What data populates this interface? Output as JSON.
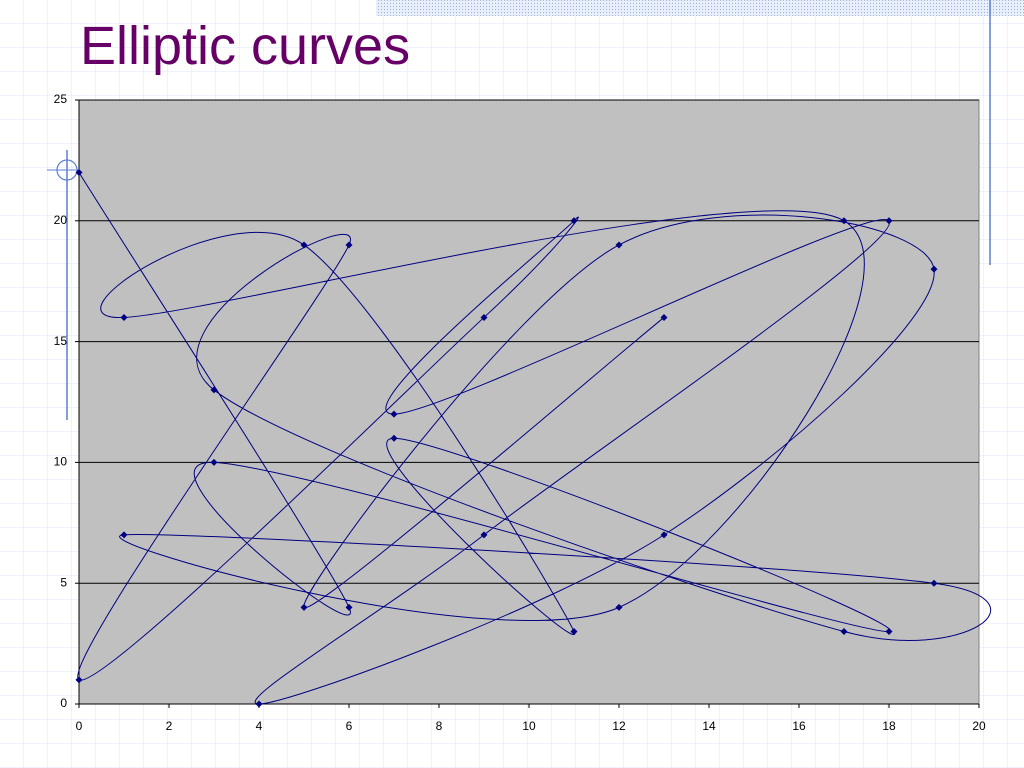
{
  "chart_data": {
    "type": "scatter",
    "title": "Elliptic curves",
    "series": [
      {
        "color": "#000080",
        "x": [
          0,
          6,
          3,
          18,
          7,
          11,
          5,
          1,
          17,
          12,
          1,
          19,
          17,
          3,
          6,
          0,
          9,
          11,
          7,
          18,
          9,
          4,
          13,
          19,
          12,
          5,
          13
        ],
        "values": [
          22,
          4,
          10,
          3,
          11,
          3,
          19,
          16,
          20,
          4,
          7,
          5,
          3,
          13,
          19,
          1,
          16,
          20,
          12,
          20,
          7,
          0,
          7,
          18,
          19,
          4,
          16
        ]
      }
    ],
    "xlim": [
      0,
      20
    ],
    "xticks": [
      0,
      2,
      4,
      6,
      8,
      10,
      12,
      14,
      16,
      18,
      20
    ],
    "ylim": [
      0,
      25
    ],
    "yticks": [
      0,
      5,
      10,
      15,
      20,
      25
    ],
    "grid": true,
    "smooth": true
  }
}
